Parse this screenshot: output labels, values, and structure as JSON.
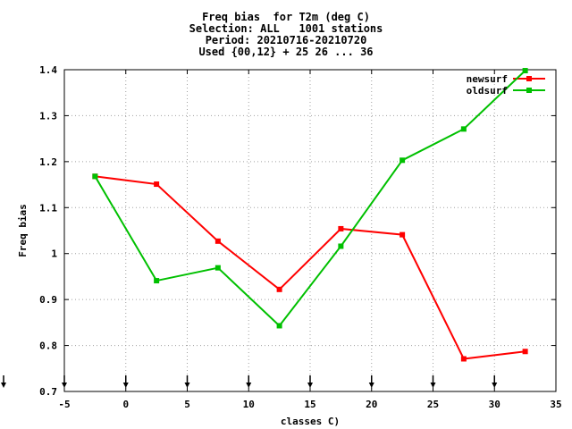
{
  "chart_data": {
    "type": "line",
    "title_lines": [
      "Freq bias  for T2m (deg C)",
      "Selection: ALL   1001 stations",
      "Period: 20210716-20210720",
      "Used {00,12} + 25 26 ... 36"
    ],
    "xlabel": "classes C)",
    "ylabel": "Freq bias",
    "xlim": [
      -5,
      35
    ],
    "ylim": [
      0.7,
      1.4
    ],
    "x_ticks": [
      "-5",
      "0",
      "5",
      "10",
      "15",
      "20",
      "25",
      "30",
      "35"
    ],
    "y_ticks": [
      "0.7",
      "0.8",
      "0.9",
      "1",
      "1.1",
      "1.2",
      "1.3",
      "1.4"
    ],
    "grid": true,
    "legend_position": "top-right",
    "arrow_marker_x": [
      -10,
      -5,
      0,
      5,
      10,
      15,
      20,
      25,
      30
    ],
    "series": [
      {
        "name": "newsurf",
        "color": "#ff0000",
        "x": [
          -2.5,
          2.5,
          7.5,
          12.5,
          17.5,
          22.5,
          27.5,
          32.5
        ],
        "values": [
          1.168,
          1.151,
          1.027,
          0.922,
          1.054,
          1.041,
          0.771,
          0.787
        ]
      },
      {
        "name": "oldsurf",
        "color": "#00c000",
        "x": [
          -2.5,
          2.5,
          7.5,
          12.5,
          17.5,
          22.5,
          27.5,
          32.5
        ],
        "values": [
          1.168,
          0.941,
          0.969,
          0.843,
          1.016,
          1.203,
          1.271,
          1.398
        ]
      }
    ]
  }
}
